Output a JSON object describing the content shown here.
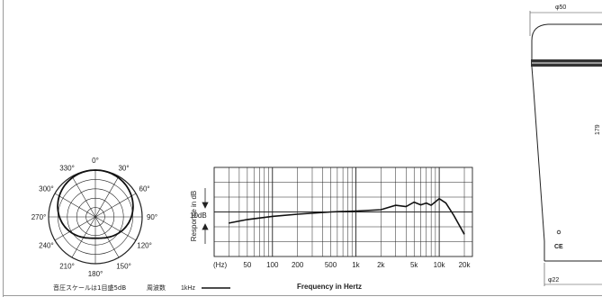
{
  "polar": {
    "angle_labels": [
      "0°",
      "30°",
      "60°",
      "90°",
      "120°",
      "150°",
      "180°",
      "210°",
      "240°",
      "270°",
      "300°",
      "330°"
    ],
    "scale_note": "音圧スケールは1目盛5dB",
    "frequency_label": "周波数",
    "legend_frequency": "1kHz"
  },
  "freq": {
    "unit_label": "(Hz)",
    "tick_labels": [
      "50",
      "100",
      "200",
      "500",
      "1k",
      "2k",
      "5k",
      "10k",
      "20k"
    ],
    "y_label": "Response in dB",
    "scale_label": "10dB",
    "x_label": "Frequency in Hertz"
  },
  "mic": {
    "top_diameter": "φ50",
    "length": "179",
    "bottom_diameter": "φ22",
    "ce_mark": "CE"
  },
  "chart_data": {
    "type": "line",
    "title": "",
    "xlabel": "Frequency in Hertz",
    "ylabel": "Response in dB",
    "x_scale": "log",
    "x": [
      30,
      50,
      100,
      200,
      500,
      1000,
      2000,
      3000,
      4000,
      5000,
      6000,
      7000,
      8000,
      10000,
      12000,
      15000,
      20000
    ],
    "series": [
      {
        "values": [
          -2.5,
          -1.7,
          -1.0,
          -0.5,
          0,
          0.2,
          0.5,
          1.5,
          1.2,
          2.2,
          1.6,
          2.0,
          1.5,
          3.0,
          2.0,
          -0.8,
          -5.0
        ]
      }
    ],
    "ylim": [
      -10,
      10
    ],
    "grid": true
  }
}
